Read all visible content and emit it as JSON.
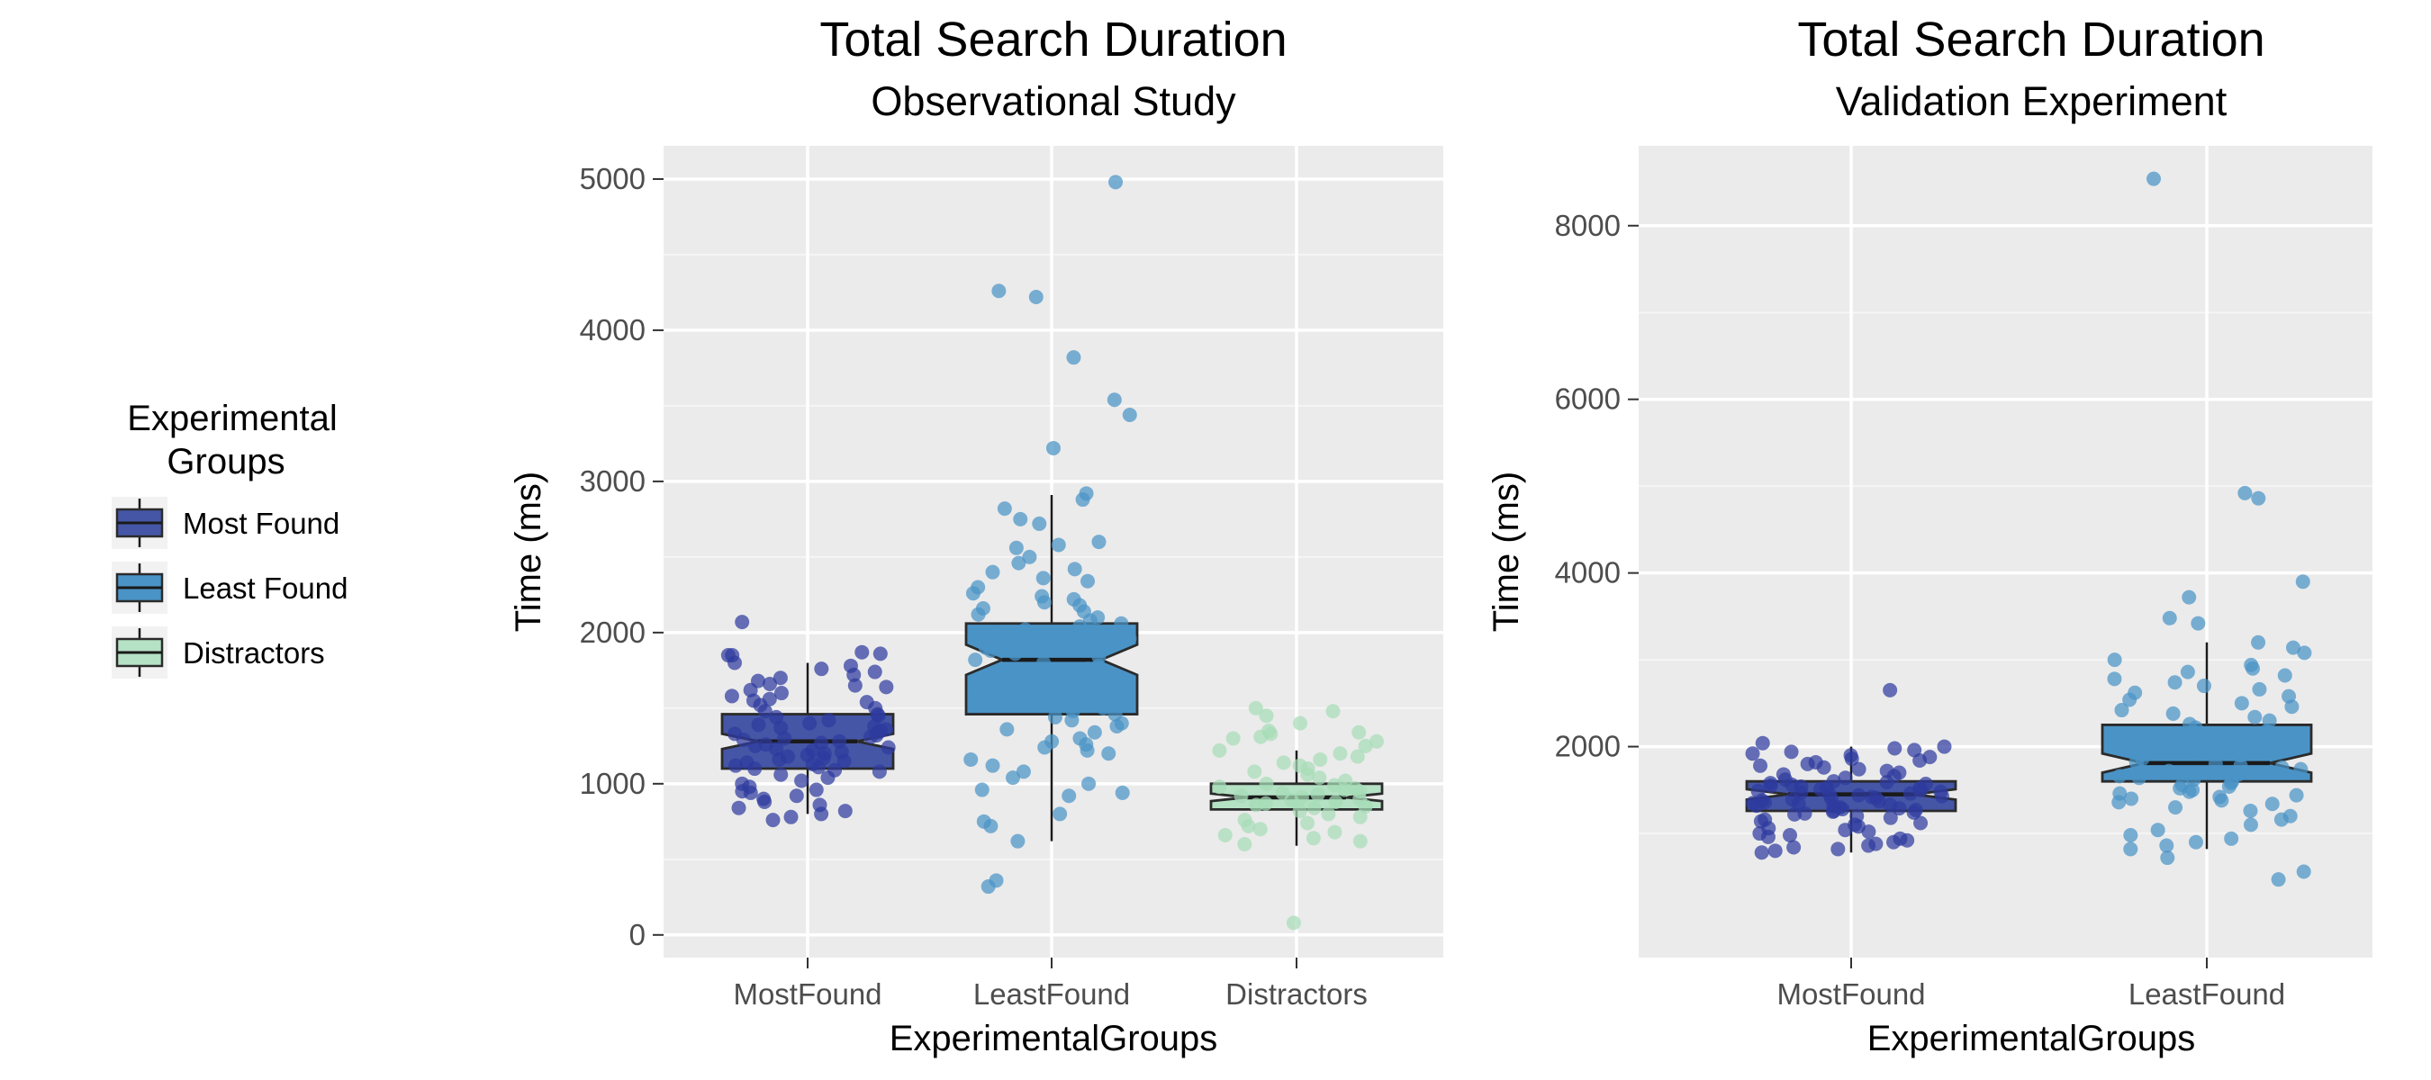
{
  "legend": {
    "title_line1": "Experimental",
    "title_line2": "Groups",
    "items": [
      {
        "label": "Most Found",
        "color": "#4556A6"
      },
      {
        "label": "Least Found",
        "color": "#4A93C6"
      },
      {
        "label": "Distractors",
        "color": "#B5E1C4"
      }
    ]
  },
  "chart_data": [
    {
      "type": "box",
      "title": "Total Search Duration",
      "subtitle": "Observational Study",
      "xlabel": "ExperimentalGroups",
      "ylabel": "Time (ms)",
      "ylim": [
        -150,
        5220
      ],
      "yticks": [
        0,
        1000,
        2000,
        3000,
        4000,
        5000
      ],
      "ytick_labels": [
        "0",
        "1000",
        "2000",
        "3000",
        "4000",
        "5000"
      ],
      "categories": [
        "MostFound",
        "LeastFound",
        "Distractors"
      ],
      "grid": true,
      "notched": true,
      "series": [
        {
          "name": "Most Found",
          "color": "#4556A6",
          "point_color": "#2E3A9E",
          "stats": {
            "whisker_low": 800,
            "q1": 1100,
            "median": 1280,
            "q3": 1460,
            "whisker_high": 1800,
            "notch_low": 1230,
            "notch_high": 1330
          },
          "points": [
            2070,
            1870,
            1860,
            1850,
            1850,
            1800,
            1780,
            1760,
            1740,
            1720,
            1700,
            1680,
            1660,
            1650,
            1640,
            1620,
            1600,
            1580,
            1560,
            1550,
            1540,
            1520,
            1500,
            1480,
            1460,
            1450,
            1440,
            1420,
            1400,
            1390,
            1380,
            1370,
            1360,
            1350,
            1340,
            1330,
            1320,
            1310,
            1300,
            1290,
            1280,
            1270,
            1260,
            1250,
            1240,
            1230,
            1220,
            1210,
            1200,
            1190,
            1180,
            1170,
            1160,
            1150,
            1140,
            1130,
            1120,
            1110,
            1100,
            1090,
            1080,
            1060,
            1040,
            1020,
            1000,
            980,
            960,
            950,
            940,
            920,
            900,
            880,
            860,
            840,
            820,
            800,
            780,
            760
          ]
        },
        {
          "name": "Least Found",
          "color": "#4A93C6",
          "point_color": "#4A93C6",
          "stats": {
            "whisker_low": 620,
            "q1": 1460,
            "median": 1820,
            "q3": 2060,
            "whisker_high": 2910,
            "notch_low": 1720,
            "notch_high": 1920
          },
          "points": [
            4980,
            4260,
            4220,
            3820,
            3540,
            3440,
            3220,
            2920,
            2880,
            2820,
            2750,
            2720,
            2600,
            2580,
            2560,
            2500,
            2460,
            2420,
            2400,
            2360,
            2340,
            2300,
            2260,
            2240,
            2220,
            2200,
            2180,
            2160,
            2140,
            2120,
            2100,
            2080,
            2060,
            2040,
            2020,
            2000,
            1980,
            1960,
            1940,
            1920,
            1900,
            1880,
            1860,
            1840,
            1820,
            1800,
            1780,
            1760,
            1740,
            1720,
            1700,
            1680,
            1660,
            1640,
            1620,
            1600,
            1580,
            1560,
            1540,
            1520,
            1500,
            1480,
            1460,
            1440,
            1420,
            1400,
            1380,
            1360,
            1340,
            1300,
            1280,
            1260,
            1240,
            1220,
            1200,
            1160,
            1120,
            1080,
            1040,
            1000,
            960,
            940,
            920,
            800,
            750,
            720,
            620,
            360,
            320
          ]
        },
        {
          "name": "Distractors",
          "color": "#B5E1C4",
          "point_color": "#A6DDB7",
          "stats": {
            "whisker_low": 590,
            "q1": 830,
            "median": 910,
            "q3": 1000,
            "whisker_high": 1220,
            "notch_low": 885,
            "notch_high": 935
          },
          "points": [
            1500,
            1480,
            1450,
            1400,
            1350,
            1340,
            1330,
            1310,
            1300,
            1280,
            1250,
            1220,
            1200,
            1180,
            1160,
            1140,
            1120,
            1100,
            1080,
            1060,
            1040,
            1020,
            1000,
            990,
            980,
            970,
            960,
            950,
            940,
            930,
            920,
            910,
            900,
            890,
            880,
            870,
            860,
            850,
            840,
            820,
            800,
            780,
            760,
            740,
            720,
            700,
            680,
            660,
            640,
            620,
            600,
            80
          ]
        }
      ]
    },
    {
      "type": "box",
      "title": "Total Search Duration",
      "subtitle": "Validation Experiment",
      "xlabel": "ExperimentalGroups",
      "ylabel": "Time (ms)",
      "ylim": [
        -430,
        8920
      ],
      "yticks": [
        2000,
        4000,
        6000,
        8000
      ],
      "ytick_labels": [
        "2000",
        "4000",
        "6000",
        "8000"
      ],
      "categories": [
        "MostFound",
        "LeastFound"
      ],
      "grid": true,
      "notched": true,
      "series": [
        {
          "name": "Most Found",
          "color": "#4556A6",
          "point_color": "#2E3A9E",
          "stats": {
            "whisker_low": 780,
            "q1": 1260,
            "median": 1450,
            "q3": 1600,
            "whisker_high": 2000,
            "notch_low": 1390,
            "notch_high": 1510
          },
          "points": [
            2650,
            2040,
            2000,
            1980,
            1960,
            1940,
            1920,
            1900,
            1880,
            1860,
            1840,
            1820,
            1800,
            1780,
            1760,
            1740,
            1720,
            1700,
            1680,
            1660,
            1640,
            1620,
            1600,
            1590,
            1580,
            1570,
            1560,
            1550,
            1540,
            1530,
            1520,
            1510,
            1500,
            1490,
            1480,
            1470,
            1460,
            1450,
            1440,
            1430,
            1420,
            1410,
            1400,
            1390,
            1380,
            1370,
            1360,
            1350,
            1340,
            1330,
            1320,
            1310,
            1300,
            1290,
            1280,
            1270,
            1260,
            1250,
            1240,
            1230,
            1220,
            1200,
            1180,
            1160,
            1140,
            1120,
            1100,
            1080,
            1060,
            1040,
            1020,
            1000,
            980,
            960,
            940,
            920,
            900,
            880,
            860,
            840,
            820,
            800,
            780
          ]
        },
        {
          "name": "Least Found",
          "color": "#4A93C6",
          "point_color": "#4A93C6",
          "stats": {
            "whisker_low": 820,
            "q1": 1600,
            "median": 1810,
            "q3": 2250,
            "whisker_high": 3200,
            "notch_low": 1700,
            "notch_high": 1920
          },
          "points": [
            8540,
            4920,
            4860,
            3900,
            3720,
            3480,
            3420,
            3200,
            3140,
            3080,
            3000,
            2940,
            2900,
            2860,
            2820,
            2780,
            2740,
            2700,
            2660,
            2620,
            2580,
            2540,
            2500,
            2460,
            2420,
            2380,
            2340,
            2300,
            2260,
            2220,
            2180,
            2140,
            2100,
            2060,
            2020,
            1980,
            1940,
            1900,
            1860,
            1820,
            1800,
            1780,
            1760,
            1740,
            1720,
            1700,
            1680,
            1660,
            1640,
            1620,
            1600,
            1580,
            1560,
            1540,
            1520,
            1500,
            1480,
            1460,
            1440,
            1420,
            1400,
            1380,
            1360,
            1340,
            1300,
            1260,
            1200,
            1160,
            1100,
            1040,
            980,
            940,
            900,
            860,
            820,
            720,
            560,
            470
          ]
        }
      ]
    }
  ]
}
